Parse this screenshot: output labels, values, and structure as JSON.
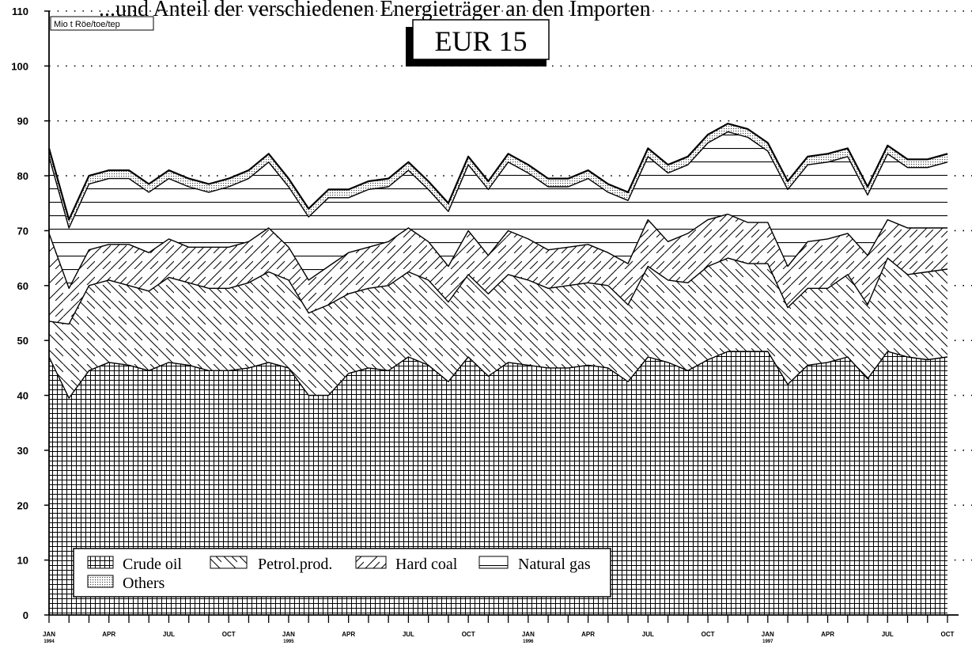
{
  "header_fragment": "...und Anteil der verschiedenen Energieträger an den Importen",
  "chart_data": {
    "type": "area",
    "title": "EUR 15",
    "unit_label": "Mio t Röe/toe/tep",
    "ylim": [
      0,
      110
    ],
    "yticks": [
      0,
      10,
      20,
      30,
      40,
      50,
      60,
      70,
      80,
      90,
      100,
      110
    ],
    "grid": "dotted horizontal",
    "legend_position": "bottom-left",
    "x_tick_labels": [
      {
        "index": 0,
        "label": "JAN",
        "year": "1994"
      },
      {
        "index": 3,
        "label": "APR"
      },
      {
        "index": 6,
        "label": "JUL"
      },
      {
        "index": 9,
        "label": "OCT"
      },
      {
        "index": 12,
        "label": "JAN",
        "year": "1995"
      },
      {
        "index": 15,
        "label": "APR"
      },
      {
        "index": 18,
        "label": "JUL"
      },
      {
        "index": 21,
        "label": "OCT"
      },
      {
        "index": 24,
        "label": "JAN",
        "year": "1996"
      },
      {
        "index": 27,
        "label": "APR"
      },
      {
        "index": 30,
        "label": "JUL"
      },
      {
        "index": 33,
        "label": "OCT"
      },
      {
        "index": 36,
        "label": "JAN",
        "year": "1997"
      },
      {
        "index": 39,
        "label": "APR"
      },
      {
        "index": 42,
        "label": "JUL"
      },
      {
        "index": 45,
        "label": "OCT"
      }
    ],
    "series": [
      {
        "name": "Crude oil",
        "pattern": "grid",
        "values": [
          47,
          39.5,
          44.5,
          46,
          45.5,
          44.5,
          46,
          45.5,
          44.5,
          44.5,
          45,
          46,
          45,
          40,
          40,
          44,
          45,
          44.5,
          47,
          45.5,
          42.5,
          47,
          43.5,
          46,
          45.5,
          45,
          45,
          45.5,
          45,
          42.5,
          47,
          46,
          44.5,
          46.5,
          48,
          48,
          48,
          42,
          45.5,
          46,
          47,
          43,
          48,
          47,
          46.5,
          47
        ]
      },
      {
        "name": "Petrol.prod.",
        "pattern": "diagonal-down",
        "values": [
          6.5,
          13.5,
          15.5,
          15,
          14.5,
          14.5,
          15.5,
          15,
          15,
          15,
          15.5,
          16.5,
          16,
          15,
          16.5,
          14.5,
          14.5,
          15.5,
          15.5,
          15.5,
          14.5,
          15,
          15,
          16,
          15.5,
          14.5,
          15,
          15,
          15,
          14,
          16.5,
          15,
          16,
          17,
          17,
          16,
          16,
          14,
          14,
          13.5,
          15,
          13.5,
          17,
          15,
          16,
          16
        ]
      },
      {
        "name": "Hard coal",
        "pattern": "diagonal-up",
        "values": [
          16,
          6.5,
          6.5,
          6.5,
          7.5,
          7,
          7,
          6.5,
          7.5,
          7.5,
          7.5,
          8,
          6,
          6,
          7,
          7.5,
          7.5,
          8,
          8,
          7,
          6.5,
          8,
          7,
          8,
          7.5,
          7,
          7,
          7,
          6,
          7.5,
          8.5,
          7,
          9,
          8.5,
          8,
          7.5,
          7.5,
          7.5,
          8.5,
          9,
          7.5,
          9,
          7,
          8.5,
          8,
          7.5
        ]
      },
      {
        "name": "Natural gas",
        "pattern": "horizontal",
        "values": [
          14,
          11,
          12,
          12,
          12,
          11,
          11,
          11,
          10,
          11,
          11.5,
          12,
          11,
          11.5,
          12.5,
          10,
          10.5,
          10,
          10.5,
          9.5,
          10,
          12,
          12,
          12.5,
          12,
          11.5,
          11,
          12,
          11,
          11.5,
          11.5,
          12.5,
          12.5,
          14,
          15,
          15.5,
          13,
          14,
          14,
          14,
          14,
          11,
          12,
          11,
          11,
          12
        ]
      },
      {
        "name": "Others",
        "pattern": "dotted",
        "values": [
          1.5,
          1.5,
          1.5,
          1.5,
          1.5,
          1.5,
          1.5,
          1.5,
          1.5,
          1.5,
          1.5,
          1.5,
          1.5,
          1.5,
          1.5,
          1.5,
          1.5,
          1.5,
          1.5,
          1.5,
          1.5,
          1.5,
          1.5,
          1.5,
          1.5,
          1.5,
          1.5,
          1.5,
          1.5,
          1.5,
          1.5,
          1.5,
          1.5,
          1.5,
          1.5,
          1.5,
          1.5,
          1.5,
          1.5,
          1.5,
          1.5,
          1.5,
          1.5,
          1.5,
          1.5,
          1.5
        ]
      }
    ]
  }
}
